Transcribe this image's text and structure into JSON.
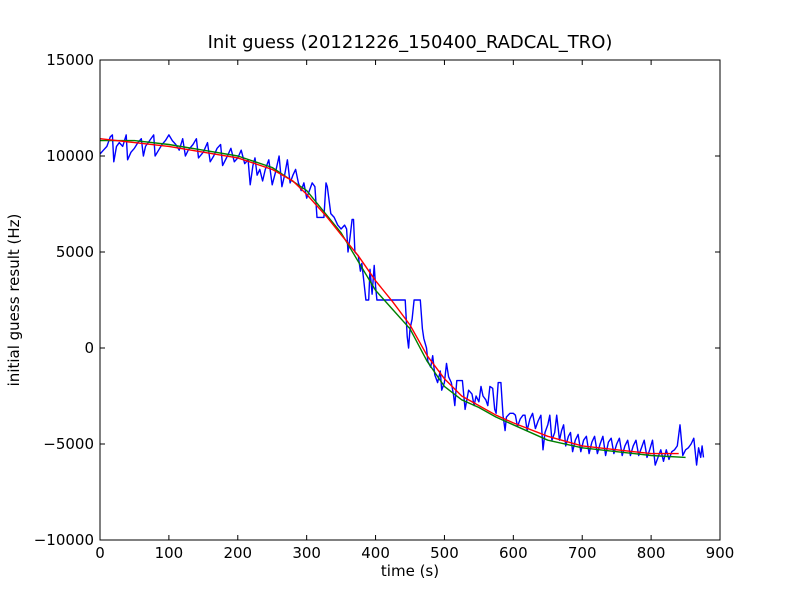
{
  "chart_data": {
    "type": "line",
    "title": "Init guess (20121226_150400_RADCAL_TRO)",
    "xlabel": "time (s)",
    "ylabel": "initial guess result (Hz)",
    "xlim": [
      0,
      900
    ],
    "ylim": [
      -10000,
      15000
    ],
    "xticks": [
      0,
      100,
      200,
      300,
      400,
      500,
      600,
      700,
      800,
      900
    ],
    "yticks": [
      -10000,
      -5000,
      0,
      5000,
      10000,
      15000
    ],
    "xtick_labels": [
      "0",
      "100",
      "200",
      "300",
      "400",
      "500",
      "600",
      "700",
      "800",
      "900"
    ],
    "ytick_labels": [
      "−10000",
      "−5000",
      "0",
      "5000",
      "10000",
      "15000"
    ],
    "grid": false,
    "legend": "none",
    "series": [
      {
        "color": "#0000ff",
        "points": [
          [
            0,
            10100
          ],
          [
            5,
            10300
          ],
          [
            10,
            10500
          ],
          [
            15,
            11000
          ],
          [
            18,
            11100
          ],
          [
            20,
            9700
          ],
          [
            24,
            10500
          ],
          [
            28,
            10700
          ],
          [
            33,
            10500
          ],
          [
            38,
            11100
          ],
          [
            40,
            9800
          ],
          [
            45,
            10200
          ],
          [
            50,
            10400
          ],
          [
            55,
            10700
          ],
          [
            60,
            10900
          ],
          [
            63,
            10000
          ],
          [
            66,
            10500
          ],
          [
            72,
            10800
          ],
          [
            78,
            11100
          ],
          [
            80,
            10000
          ],
          [
            85,
            10300
          ],
          [
            90,
            10600
          ],
          [
            95,
            10800
          ],
          [
            100,
            11100
          ],
          [
            105,
            10800
          ],
          [
            110,
            10600
          ],
          [
            115,
            10300
          ],
          [
            120,
            10900
          ],
          [
            124,
            10000
          ],
          [
            128,
            10300
          ],
          [
            135,
            10600
          ],
          [
            140,
            10900
          ],
          [
            143,
            9900
          ],
          [
            150,
            10200
          ],
          [
            156,
            10700
          ],
          [
            160,
            9700
          ],
          [
            165,
            10000
          ],
          [
            170,
            10400
          ],
          [
            175,
            10600
          ],
          [
            178,
            9500
          ],
          [
            185,
            10000
          ],
          [
            190,
            10400
          ],
          [
            195,
            9700
          ],
          [
            200,
            9900
          ],
          [
            205,
            10300
          ],
          [
            210,
            9600
          ],
          [
            215,
            9800
          ],
          [
            218,
            8500
          ],
          [
            222,
            9500
          ],
          [
            225,
            9900
          ],
          [
            228,
            9000
          ],
          [
            232,
            9300
          ],
          [
            236,
            8700
          ],
          [
            240,
            9300
          ],
          [
            245,
            9800
          ],
          [
            250,
            8500
          ],
          [
            255,
            9200
          ],
          [
            260,
            10000
          ],
          [
            264,
            8400
          ],
          [
            268,
            9000
          ],
          [
            272,
            9800
          ],
          [
            276,
            8600
          ],
          [
            280,
            9000
          ],
          [
            284,
            9300
          ],
          [
            288,
            8600
          ],
          [
            292,
            8200
          ],
          [
            296,
            8600
          ],
          [
            300,
            7800
          ],
          [
            304,
            8200
          ],
          [
            308,
            8600
          ],
          [
            312,
            8400
          ],
          [
            315,
            6800
          ],
          [
            320,
            6800
          ],
          [
            325,
            6800
          ],
          [
            328,
            8600
          ],
          [
            330,
            8400
          ],
          [
            335,
            7000
          ],
          [
            340,
            6800
          ],
          [
            345,
            6400
          ],
          [
            350,
            6200
          ],
          [
            355,
            6400
          ],
          [
            358,
            6200
          ],
          [
            360,
            5000
          ],
          [
            363,
            5800
          ],
          [
            366,
            6700
          ],
          [
            368,
            6700
          ],
          [
            370,
            5000
          ],
          [
            375,
            4800
          ],
          [
            378,
            4000
          ],
          [
            380,
            4400
          ],
          [
            383,
            3500
          ],
          [
            386,
            2500
          ],
          [
            390,
            2500
          ],
          [
            392,
            4100
          ],
          [
            395,
            2800
          ],
          [
            398,
            4300
          ],
          [
            400,
            3200
          ],
          [
            402,
            2500
          ],
          [
            405,
            2500
          ],
          [
            408,
            2500
          ],
          [
            410,
            2500
          ],
          [
            415,
            2500
          ],
          [
            420,
            2500
          ],
          [
            424,
            2500
          ],
          [
            426,
            2500
          ],
          [
            430,
            2500
          ],
          [
            433,
            2500
          ],
          [
            435,
            2500
          ],
          [
            438,
            2500
          ],
          [
            440,
            2500
          ],
          [
            443,
            2500
          ],
          [
            446,
            600
          ],
          [
            448,
            0
          ],
          [
            450,
            1000
          ],
          [
            453,
            1500
          ],
          [
            456,
            2500
          ],
          [
            460,
            2500
          ],
          [
            462,
            2500
          ],
          [
            465,
            2500
          ],
          [
            468,
            1000
          ],
          [
            470,
            500
          ],
          [
            474,
            0
          ],
          [
            476,
            -700
          ],
          [
            480,
            -1000
          ],
          [
            483,
            -400
          ],
          [
            486,
            -1400
          ],
          [
            490,
            -1800
          ],
          [
            494,
            -1200
          ],
          [
            496,
            -2200
          ],
          [
            500,
            -1800
          ],
          [
            503,
            -800
          ],
          [
            506,
            -1500
          ],
          [
            510,
            -1800
          ],
          [
            513,
            -2400
          ],
          [
            515,
            -3000
          ],
          [
            518,
            -1700
          ],
          [
            522,
            -1700
          ],
          [
            526,
            -1700
          ],
          [
            530,
            -3200
          ],
          [
            532,
            -2800
          ],
          [
            535,
            -2200
          ],
          [
            540,
            -2400
          ],
          [
            543,
            -3000
          ],
          [
            546,
            -2500
          ],
          [
            550,
            -2800
          ],
          [
            553,
            -2000
          ],
          [
            556,
            -2500
          ],
          [
            560,
            -2700
          ],
          [
            563,
            -3000
          ],
          [
            566,
            -2000
          ],
          [
            570,
            -2100
          ],
          [
            573,
            -3200
          ],
          [
            575,
            -3400
          ],
          [
            578,
            -1800
          ],
          [
            580,
            -1800
          ],
          [
            582,
            -1800
          ],
          [
            585,
            -3500
          ],
          [
            588,
            -4300
          ],
          [
            590,
            -3600
          ],
          [
            595,
            -3400
          ],
          [
            600,
            -3400
          ],
          [
            603,
            -3500
          ],
          [
            606,
            -4100
          ],
          [
            610,
            -3700
          ],
          [
            614,
            -3500
          ],
          [
            617,
            -3500
          ],
          [
            620,
            -4300
          ],
          [
            624,
            -3700
          ],
          [
            628,
            -3400
          ],
          [
            632,
            -4200
          ],
          [
            636,
            -3800
          ],
          [
            640,
            -3500
          ],
          [
            643,
            -5300
          ],
          [
            646,
            -4400
          ],
          [
            650,
            -4000
          ],
          [
            653,
            -3500
          ],
          [
            656,
            -4800
          ],
          [
            660,
            -4400
          ],
          [
            663,
            -3500
          ],
          [
            667,
            -4800
          ],
          [
            670,
            -4300
          ],
          [
            673,
            -4000
          ],
          [
            676,
            -5100
          ],
          [
            680,
            -4600
          ],
          [
            683,
            -4400
          ],
          [
            686,
            -5400
          ],
          [
            690,
            -4800
          ],
          [
            694,
            -4500
          ],
          [
            698,
            -5400
          ],
          [
            702,
            -4800
          ],
          [
            706,
            -4600
          ],
          [
            710,
            -5500
          ],
          [
            714,
            -4900
          ],
          [
            718,
            -4600
          ],
          [
            722,
            -5500
          ],
          [
            726,
            -5000
          ],
          [
            730,
            -4600
          ],
          [
            734,
            -5600
          ],
          [
            738,
            -4900
          ],
          [
            742,
            -4700
          ],
          [
            746,
            -5500
          ],
          [
            750,
            -5000
          ],
          [
            754,
            -4700
          ],
          [
            758,
            -5600
          ],
          [
            762,
            -5100
          ],
          [
            766,
            -4800
          ],
          [
            770,
            -5600
          ],
          [
            774,
            -5100
          ],
          [
            778,
            -4800
          ],
          [
            782,
            -5600
          ],
          [
            786,
            -5200
          ],
          [
            790,
            -4800
          ],
          [
            794,
            -5700
          ],
          [
            798,
            -5300
          ],
          [
            802,
            -4800
          ],
          [
            806,
            -6100
          ],
          [
            810,
            -5700
          ],
          [
            814,
            -5300
          ],
          [
            818,
            -5900
          ],
          [
            822,
            -5300
          ],
          [
            826,
            -5800
          ],
          [
            830,
            -5400
          ],
          [
            834,
            -5300
          ],
          [
            838,
            -5100
          ],
          [
            842,
            -4000
          ],
          [
            846,
            -5600
          ],
          [
            850,
            -5300
          ],
          [
            854,
            -5200
          ],
          [
            858,
            -5000
          ],
          [
            862,
            -4700
          ],
          [
            866,
            -6100
          ],
          [
            869,
            -5200
          ],
          [
            872,
            -5700
          ],
          [
            874,
            -5100
          ],
          [
            876,
            -5700
          ]
        ]
      },
      {
        "color": "#008000",
        "points": [
          [
            0,
            10800
          ],
          [
            50,
            10800
          ],
          [
            100,
            10600
          ],
          [
            150,
            10300
          ],
          [
            200,
            10000
          ],
          [
            250,
            9400
          ],
          [
            300,
            8200
          ],
          [
            350,
            6000
          ],
          [
            375,
            4500
          ],
          [
            400,
            3000
          ],
          [
            425,
            2000
          ],
          [
            450,
            1000
          ],
          [
            475,
            -700
          ],
          [
            500,
            -2000
          ],
          [
            525,
            -2700
          ],
          [
            550,
            -3100
          ],
          [
            575,
            -3600
          ],
          [
            600,
            -4000
          ],
          [
            650,
            -4800
          ],
          [
            700,
            -5200
          ],
          [
            750,
            -5400
          ],
          [
            800,
            -5600
          ],
          [
            850,
            -5700
          ]
        ]
      },
      {
        "color": "#ff0000",
        "points": [
          [
            0,
            10900
          ],
          [
            50,
            10700
          ],
          [
            100,
            10500
          ],
          [
            150,
            10200
          ],
          [
            200,
            9900
          ],
          [
            250,
            9300
          ],
          [
            280,
            8700
          ],
          [
            300,
            8000
          ],
          [
            330,
            6800
          ],
          [
            350,
            5900
          ],
          [
            375,
            4800
          ],
          [
            400,
            3500
          ],
          [
            425,
            2400
          ],
          [
            450,
            1200
          ],
          [
            475,
            -400
          ],
          [
            500,
            -1600
          ],
          [
            525,
            -2500
          ],
          [
            550,
            -3000
          ],
          [
            575,
            -3500
          ],
          [
            600,
            -3900
          ],
          [
            650,
            -4600
          ],
          [
            700,
            -5100
          ],
          [
            750,
            -5300
          ],
          [
            800,
            -5500
          ],
          [
            840,
            -5500
          ]
        ]
      }
    ]
  }
}
